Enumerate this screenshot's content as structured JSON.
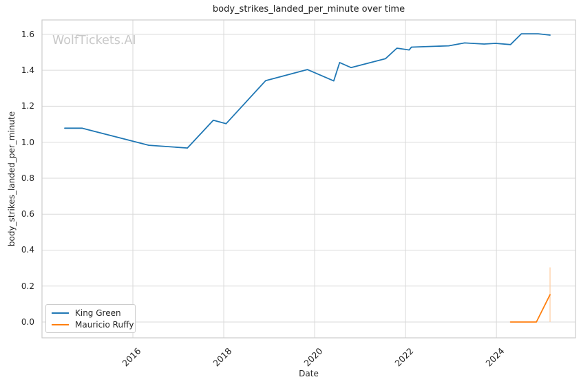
{
  "watermark": "WolfTickets.AI",
  "chart_data": {
    "type": "line",
    "title": "body_strikes_landed_per_minute over time",
    "xlabel": "Date",
    "ylabel": "body_strikes_landed_per_minute",
    "x_ticks": [
      2016,
      2018,
      2020,
      2022,
      2024
    ],
    "x_tick_labels": [
      "2016",
      "2018",
      "2020",
      "2022",
      "2024"
    ],
    "y_ticks": [
      0.0,
      0.2,
      0.4,
      0.6,
      0.8,
      1.0,
      1.2,
      1.4,
      1.6
    ],
    "y_tick_labels": [
      "0.0",
      "0.2",
      "0.4",
      "0.6",
      "0.8",
      "1.0",
      "1.2",
      "1.4",
      "1.6"
    ],
    "xlim": [
      2014.0,
      2025.74
    ],
    "ylim": [
      -0.088,
      1.68
    ],
    "grid": true,
    "legend_position": "lower left",
    "colors": {
      "king_green": "#1f77b4",
      "mauricio_ruffy": "#ff7f0e",
      "grid": "#d9d9d9",
      "spine": "#cccccc",
      "watermark": "#c8c8c8",
      "error_bar": "#ffd2ab",
      "text": "#262626"
    },
    "series": [
      {
        "name": "King Green",
        "color": "#1f77b4",
        "points": [
          [
            2014.5,
            1.078
          ],
          [
            2014.88,
            1.078
          ],
          [
            2016.35,
            0.983
          ],
          [
            2017.2,
            0.968
          ],
          [
            2017.77,
            1.122
          ],
          [
            2018.05,
            1.103
          ],
          [
            2018.92,
            1.342
          ],
          [
            2019.84,
            1.404
          ],
          [
            2020.42,
            1.341
          ],
          [
            2020.55,
            1.443
          ],
          [
            2020.8,
            1.415
          ],
          [
            2021.56,
            1.465
          ],
          [
            2021.81,
            1.523
          ],
          [
            2022.08,
            1.513
          ],
          [
            2022.13,
            1.529
          ],
          [
            2022.95,
            1.536
          ],
          [
            2023.3,
            1.552
          ],
          [
            2023.73,
            1.546
          ],
          [
            2023.98,
            1.55
          ],
          [
            2024.31,
            1.543
          ],
          [
            2024.55,
            1.603
          ],
          [
            2024.92,
            1.603
          ],
          [
            2025.18,
            1.596
          ]
        ]
      },
      {
        "name": "Mauricio Ruffy",
        "color": "#ff7f0e",
        "points": [
          [
            2024.31,
            0.0
          ],
          [
            2024.88,
            0.0
          ],
          [
            2025.18,
            0.152
          ]
        ],
        "error_bar": {
          "x": 2025.18,
          "lo": 0.0,
          "hi": 0.304
        }
      }
    ]
  }
}
